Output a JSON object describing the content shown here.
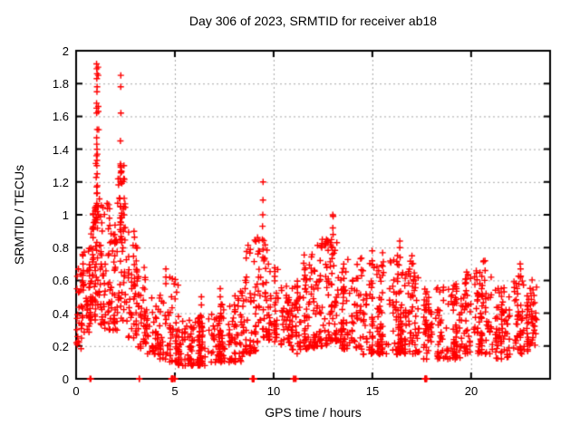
{
  "title": "Day 306 of 2023, SRMTID for receiver ab18",
  "colors": {
    "marker": "#ff0000",
    "grid": "#a8a8a8",
    "axis": "#000000",
    "background": "#ffffff",
    "text": "#000000"
  },
  "chart_data": {
    "type": "scatter",
    "title": "Day 306 of 2023, SRMTID for receiver ab18",
    "xlabel": "GPS time / hours",
    "ylabel": "SRMTID / TECUs",
    "xlim": [
      0,
      24
    ],
    "ylim": [
      0,
      2
    ],
    "xticks": [
      0,
      5,
      10,
      15,
      20
    ],
    "yticks": [
      0,
      0.2,
      0.4,
      0.6,
      0.8,
      1,
      1.2,
      1.4,
      1.6,
      1.8,
      2
    ],
    "grid": true,
    "legend": "none",
    "marker": {
      "shape": "plus",
      "color": "#ff0000",
      "size": 7
    },
    "seed": 20230306,
    "point_bands_format": [
      "t_start",
      "t_end",
      "count",
      "y_min",
      "y_max",
      "low_bias"
    ],
    "point_bands": [
      [
        0.0,
        0.3,
        25,
        0.18,
        0.68,
        1.0
      ],
      [
        0.3,
        0.7,
        42,
        0.28,
        0.8,
        1.0
      ],
      [
        0.7,
        1.0,
        48,
        0.35,
        1.05,
        1.0
      ],
      [
        1.0,
        1.25,
        32,
        0.45,
        1.55,
        1.2
      ],
      [
        1.25,
        1.7,
        52,
        0.3,
        1.1,
        1.2
      ],
      [
        1.7,
        2.1,
        40,
        0.28,
        0.95,
        1.2
      ],
      [
        2.1,
        2.6,
        58,
        0.35,
        1.28,
        1.2
      ],
      [
        2.6,
        3.1,
        46,
        0.25,
        0.92,
        1.2
      ],
      [
        3.1,
        3.6,
        40,
        0.18,
        0.68,
        1.3
      ],
      [
        3.6,
        4.2,
        36,
        0.15,
        0.52,
        1.4
      ],
      [
        4.2,
        4.7,
        30,
        0.12,
        0.55,
        1.5
      ],
      [
        4.7,
        5.2,
        42,
        0.1,
        0.62,
        1.6
      ],
      [
        5.2,
        6.0,
        56,
        0.08,
        0.36,
        1.4
      ],
      [
        6.0,
        7.0,
        72,
        0.08,
        0.4,
        1.4
      ],
      [
        7.0,
        8.0,
        76,
        0.1,
        0.46,
        1.4
      ],
      [
        8.0,
        8.6,
        46,
        0.1,
        0.54,
        1.4
      ],
      [
        8.6,
        9.2,
        52,
        0.15,
        0.88,
        1.5
      ],
      [
        9.2,
        9.7,
        40,
        0.25,
        0.85,
        1.5
      ],
      [
        9.7,
        10.3,
        42,
        0.22,
        0.7,
        1.4
      ],
      [
        10.3,
        10.9,
        40,
        0.18,
        0.62,
        1.4
      ],
      [
        10.9,
        11.4,
        40,
        0.15,
        0.6,
        1.4
      ],
      [
        11.4,
        12.1,
        62,
        0.18,
        0.76,
        1.4
      ],
      [
        12.1,
        12.8,
        62,
        0.2,
        0.85,
        1.5
      ],
      [
        12.8,
        13.4,
        52,
        0.22,
        0.85,
        1.5
      ],
      [
        13.4,
        14.5,
        88,
        0.18,
        0.74,
        1.5
      ],
      [
        14.5,
        15.5,
        86,
        0.15,
        0.72,
        1.5
      ],
      [
        15.5,
        16.5,
        78,
        0.15,
        0.8,
        1.5
      ],
      [
        16.5,
        17.5,
        76,
        0.15,
        0.72,
        1.5
      ],
      [
        17.5,
        18.5,
        72,
        0.12,
        0.56,
        1.4
      ],
      [
        18.5,
        19.5,
        72,
        0.12,
        0.58,
        1.4
      ],
      [
        19.5,
        20.5,
        72,
        0.15,
        0.66,
        1.4
      ],
      [
        20.5,
        21.2,
        46,
        0.15,
        0.72,
        1.4
      ],
      [
        21.2,
        22.1,
        66,
        0.12,
        0.56,
        1.4
      ],
      [
        22.1,
        22.9,
        62,
        0.15,
        0.72,
        1.4
      ],
      [
        22.9,
        23.3,
        36,
        0.2,
        0.62,
        1.3
      ]
    ],
    "spike_columns": [
      {
        "t": 0.35,
        "values": [
          0.75,
          0.7,
          0.66
        ]
      },
      {
        "t": 1.05,
        "values": [
          1.92,
          1.89,
          1.86,
          1.83,
          1.78,
          1.75,
          1.68,
          1.65,
          1.62,
          1.52,
          1.47,
          1.43,
          1.36,
          1.3,
          1.25,
          1.17,
          1.13,
          1.07,
          1.02,
          0.97
        ]
      },
      {
        "t": 1.12,
        "values": [
          1.9,
          1.85,
          1.66,
          1.63,
          1.05,
          1.0
        ]
      },
      {
        "t": 2.25,
        "values": [
          1.85,
          1.78,
          1.62,
          1.45,
          1.31,
          1.3,
          1.29,
          1.2,
          1.05,
          0.98
        ]
      },
      {
        "t": 2.42,
        "values": [
          1.3,
          1.22,
          1.1,
          1.0,
          0.92
        ]
      },
      {
        "t": 4.55,
        "values": [
          0.67,
          0.62,
          0.58
        ]
      },
      {
        "t": 6.35,
        "values": [
          0.5,
          0.45
        ]
      },
      {
        "t": 7.3,
        "values": [
          0.55,
          0.5
        ]
      },
      {
        "t": 8.55,
        "values": [
          0.6,
          0.55
        ]
      },
      {
        "t": 9.45,
        "values": [
          1.2,
          1.09,
          1.0,
          0.93,
          0.85,
          0.79,
          0.74
        ]
      },
      {
        "t": 12.45,
        "values": [
          0.85,
          0.8
        ]
      },
      {
        "t": 13.0,
        "values": [
          1.0,
          0.99,
          0.92,
          0.88,
          0.8
        ]
      },
      {
        "t": 15.0,
        "values": [
          0.78,
          0.72
        ]
      },
      {
        "t": 16.4,
        "values": [
          0.84,
          0.8,
          0.74
        ]
      },
      {
        "t": 17.0,
        "values": [
          0.75,
          0.7
        ]
      },
      {
        "t": 20.7,
        "values": [
          0.72,
          0.66,
          0.6
        ]
      },
      {
        "t": 22.5,
        "values": [
          0.7,
          0.67,
          0.62
        ]
      }
    ],
    "zero_points": [
      {
        "t": 0.72,
        "n": 2
      },
      {
        "t": 3.17,
        "n": 2
      },
      {
        "t": 4.85,
        "n": 10
      },
      {
        "t": 5.02,
        "n": 2
      },
      {
        "t": 8.95,
        "n": 12
      },
      {
        "t": 11.0,
        "n": 2
      },
      {
        "t": 11.1,
        "n": 2
      },
      {
        "t": 17.7,
        "n": 8
      }
    ]
  }
}
